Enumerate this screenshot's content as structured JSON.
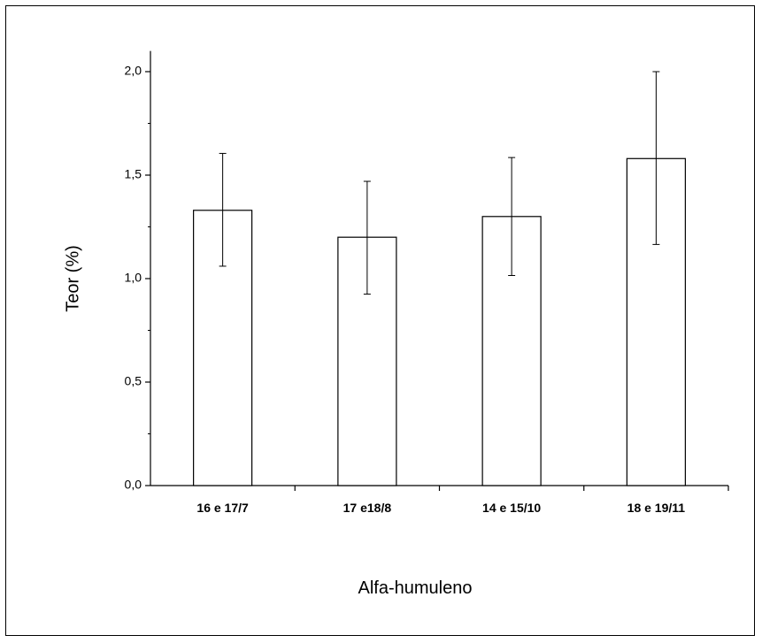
{
  "chart_data": {
    "type": "bar",
    "xlabel": "Alfa-humuleno",
    "ylabel": "Teor (%)",
    "categories": [
      "16 e 17/7",
      "17 e18/8",
      "14 e 15/10",
      "18 e 19/11"
    ],
    "values": [
      1.33,
      1.2,
      1.3,
      1.58
    ],
    "error_low": [
      1.06,
      0.925,
      1.015,
      1.165
    ],
    "error_high": [
      1.605,
      1.47,
      1.585,
      2.0
    ],
    "ylim": [
      0,
      2.1
    ],
    "yticks": [
      0.0,
      0.5,
      1.0,
      1.5,
      2.0
    ],
    "ytick_labels": [
      "0,0",
      "0,5",
      "1,0",
      "1,5",
      "2,0"
    ],
    "bar_fill": "#ffffff",
    "bar_stroke": "#000000",
    "grid": false,
    "legend": "none"
  }
}
